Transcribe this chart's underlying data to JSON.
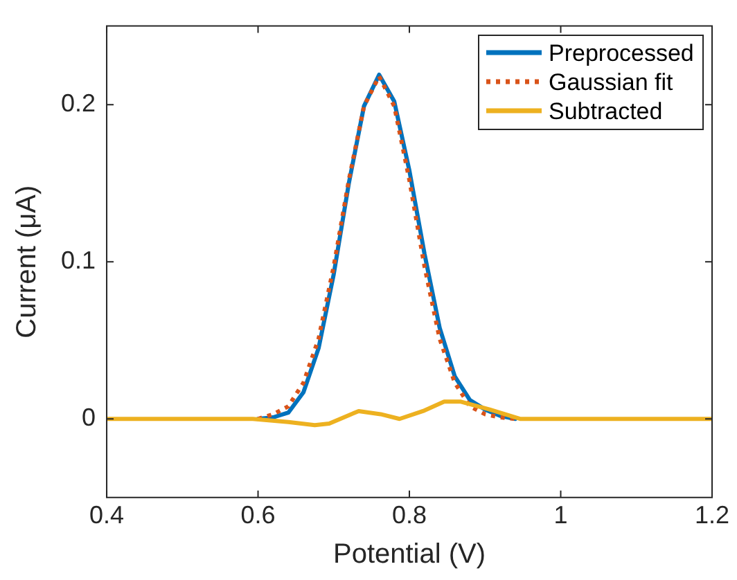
{
  "chart_data": {
    "type": "line",
    "xlabel": "Potential (V)",
    "ylabel": "Current (μA)",
    "xlim": [
      0.4,
      1.2
    ],
    "xticks": [
      0.4,
      0.6,
      0.8,
      1,
      1.2
    ],
    "ylim": [
      -0.05,
      0.25
    ],
    "yticks": [
      0,
      0.1,
      0.2
    ],
    "grid": false,
    "legend": "top right",
    "marker": "none",
    "series": [
      {
        "name": "Preprocessed",
        "color": "#0072bd",
        "line_style": "solid",
        "x": [
          0.6,
          0.62,
          0.64,
          0.66,
          0.68,
          0.7,
          0.72,
          0.74,
          0.76,
          0.78,
          0.8,
          0.82,
          0.84,
          0.86,
          0.88,
          0.9,
          0.92,
          0.94
        ],
        "values": [
          0,
          0.001,
          0.004,
          0.017,
          0.045,
          0.092,
          0.15,
          0.199,
          0.219,
          0.202,
          0.158,
          0.105,
          0.058,
          0.027,
          0.012,
          0.006,
          0.002,
          0
        ]
      },
      {
        "name": "Gaussian fit",
        "color": "#d95319",
        "line_style": "dotted",
        "x": [
          0.6,
          0.62,
          0.64,
          0.66,
          0.68,
          0.7,
          0.72,
          0.74,
          0.76,
          0.78,
          0.8,
          0.82,
          0.84,
          0.86,
          0.88,
          0.9,
          0.92,
          0.94
        ],
        "values": [
          0,
          0.003,
          0.008,
          0.023,
          0.051,
          0.097,
          0.152,
          0.199,
          0.218,
          0.199,
          0.152,
          0.097,
          0.051,
          0.023,
          0.008,
          0.003,
          0.001,
          0
        ]
      },
      {
        "name": "Subtracted",
        "color": "#edb120",
        "line_style": "solid",
        "x": [
          0.4,
          0.5,
          0.593,
          0.64,
          0.675,
          0.694,
          0.733,
          0.762,
          0.787,
          0.818,
          0.846,
          0.868,
          0.906,
          0.947,
          1,
          1.1,
          1.2
        ],
        "values": [
          0,
          0,
          0,
          -0.002,
          -0.004,
          -0.003,
          0.005,
          0.003,
          0,
          0.005,
          0.011,
          0.011,
          0.006,
          0,
          0,
          0,
          0
        ]
      }
    ]
  }
}
